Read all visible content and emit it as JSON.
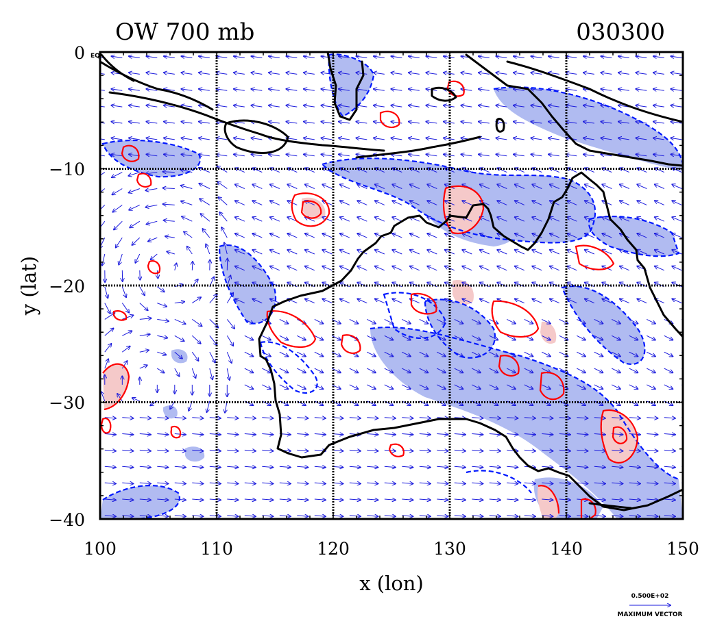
{
  "header": {
    "field_title": "OW 700 mb",
    "timestamp": "030300"
  },
  "axes": {
    "xlabel": "x (lon)",
    "ylabel": "y (lat)",
    "x_ticks": [
      "100",
      "110",
      "120",
      "130",
      "140",
      "150"
    ],
    "y_ticks": [
      "0",
      "−10",
      "−20",
      "−30",
      "−40"
    ],
    "eq_tag": "EQ"
  },
  "legend": {
    "vector_value": "0.500E+02",
    "vector_label": "MAXIMUM VECTOR"
  },
  "colors": {
    "positive_contour": "#ff0000",
    "positive_fill": "#f5c9c9",
    "negative_contour": "#0018ff",
    "negative_fill": "#a8b4f0",
    "vectors": "#1a1adc",
    "coastline": "#000000",
    "gridlines": "#000000"
  },
  "chart_data": {
    "type": "map",
    "projection": "lat-lon",
    "xlim": [
      100,
      150
    ],
    "ylim": [
      -40,
      0
    ],
    "grid": true,
    "grid_lon": [
      110,
      120,
      130,
      140
    ],
    "grid_lat": [
      -10,
      -20,
      -30
    ],
    "field": "OW 700 mb",
    "valid_time": "030300",
    "contours": [
      {
        "name": "positive",
        "color": "#ff0000",
        "fill": "#f5c9c9"
      },
      {
        "name": "negative",
        "color": "#0018ff",
        "fill": "#a8b4f0"
      }
    ],
    "vectors": {
      "color": "#1a1adc",
      "max_vector": "0.500E+02"
    }
  }
}
